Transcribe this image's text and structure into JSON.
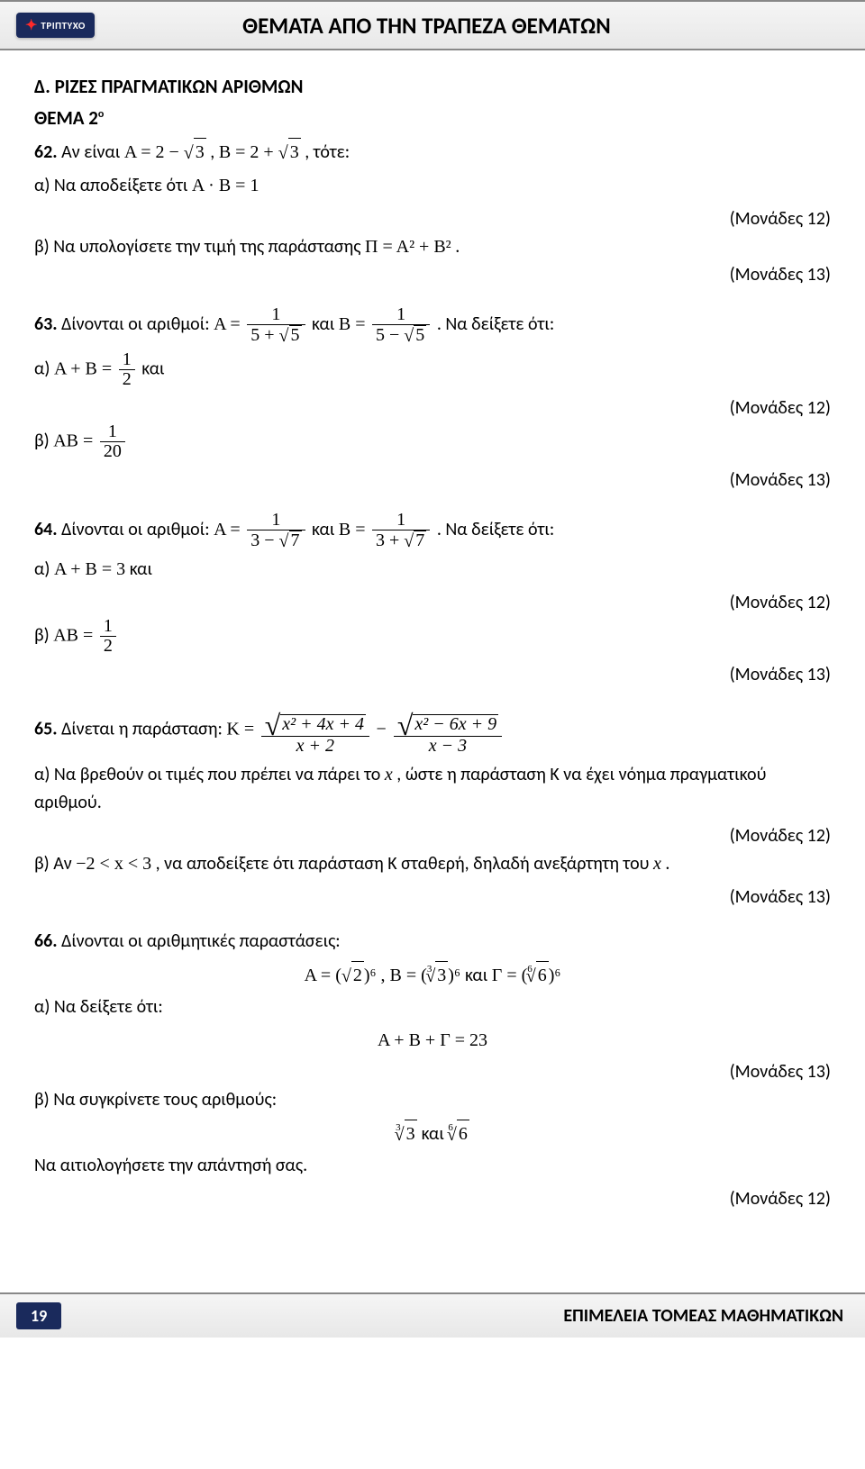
{
  "header": {
    "logo_text": "ΤΡΙΠΤΥΧΟ",
    "title": "ΘΕΜΑΤΑ ΑΠΟ ΤΗΝ ΤΡΑΠΕΖΑ ΘΕΜΑΤΩΝ"
  },
  "section": {
    "title": "Δ. ΡΙΖΕΣ ΠΡΑΓΜΑΤΙΚΩΝ ΑΡΙΘΜΩΝ",
    "theme": "ΘΕΜΑ 2",
    "theme_sup": "ο"
  },
  "q62": {
    "num": "62.",
    "intro": " Αν είναι ",
    "A_def": "Α = 2 − ",
    "root3": "3",
    "mid": " , ",
    "B_def": "Β = 2 + ",
    "tail": " , τότε:",
    "a": "α) Να αποδείξετε ότι ",
    "ab1": "Α · Β = 1",
    "pts_a": "(Μονάδες 12)",
    "b": "β) Να υπολογίσετε την τιμή της παράστασης ",
    "pi_expr": "Π = Α² + Β²",
    "dot": " .",
    "pts_b": "(Μονάδες 13)"
  },
  "q63": {
    "num": "63.",
    "intro": " Δίνονται οι αριθμοί: ",
    "A_eq": "Α =",
    "num1": "1",
    "den_a": "5 + ",
    "root5": "5",
    "and": " και ",
    "B_eq": "Β =",
    "den_b": "5 − ",
    "show": " . Να δείξετε ότι:",
    "a": "α) ",
    "a_expr": "Α + Β =",
    "frac_half_num": "1",
    "frac_half_den": "2",
    "a_tail": " και",
    "pts_a": "(Μονάδες 12)",
    "b": "β) ",
    "b_expr": "ΑΒ =",
    "frac_20_num": "1",
    "frac_20_den": "20",
    "pts_b": "(Μονάδες 13)"
  },
  "q64": {
    "num": "64.",
    "intro": " Δίνονται οι αριθμοί: ",
    "A_eq": "Α =",
    "num1": "1",
    "den_a": "3 − ",
    "root7": "7",
    "and": " και ",
    "B_eq": "Β =",
    "den_b": "3 + ",
    "show": " . Να δείξετε ότι:",
    "a": "α) ",
    "a_expr": "Α + Β = 3",
    "a_tail": " και",
    "pts_a": "(Μονάδες 12)",
    "b": "β) ",
    "b_expr": "ΑΒ =",
    "frac_half_num": "1",
    "frac_half_den": "2",
    "pts_b": "(Μονάδες 13)"
  },
  "q65": {
    "num": "65.",
    "intro": " Δίνεται η παράσταση: ",
    "K_eq": "Κ =",
    "sq1": "x² + 4x + 4",
    "den1": "x + 2",
    "minus": " − ",
    "sq2": "x² − 6x + 9",
    "den2": "x − 3",
    "a": "α) Να βρεθούν οι τιμές που πρέπει να πάρει το ",
    "x": "x",
    "a2": " , ώστε η παράσταση Κ να έχει νόημα πραγματικού αριθμού.",
    "pts_a": "(Μονάδες 12)",
    "b": "β) Αν ",
    "range": "−2 < x < 3",
    "b2": " , να αποδείξετε ότι παράσταση Κ σταθερή, δηλαδή ανεξάρτητη του ",
    "b3": " .",
    "pts_b": "(Μονάδες 13)"
  },
  "q66": {
    "num": "66.",
    "intro": " Δίνονται οι αριθμητικές παραστάσεις:",
    "A_eq": "Α = ",
    "open": "(",
    "r2": "2",
    "close6": ")⁶",
    "comma": " , ",
    "B_eq": "Β = ",
    "idx3": "3",
    "r3": "3",
    "and": " και ",
    "G_eq": "Γ = ",
    "idx6": "6",
    "r6": "6",
    "a": "α) Να δείξετε ότι:",
    "sum": "Α + Β + Γ = 23",
    "pts_a": "(Μονάδες 13)",
    "b": "β) Να συγκρίνετε τους αριθμούς:",
    "cmp_and": " και ",
    "c": "Να αιτιολογήσετε την απάντησή σας.",
    "pts_b": "(Μονάδες 12)"
  },
  "footer": {
    "page": "19",
    "text": "ΕΠΙΜΕΛΕΙΑ ΤΟΜΕΑΣ ΜΑΘΗΜΑΤΙΚΩΝ"
  }
}
